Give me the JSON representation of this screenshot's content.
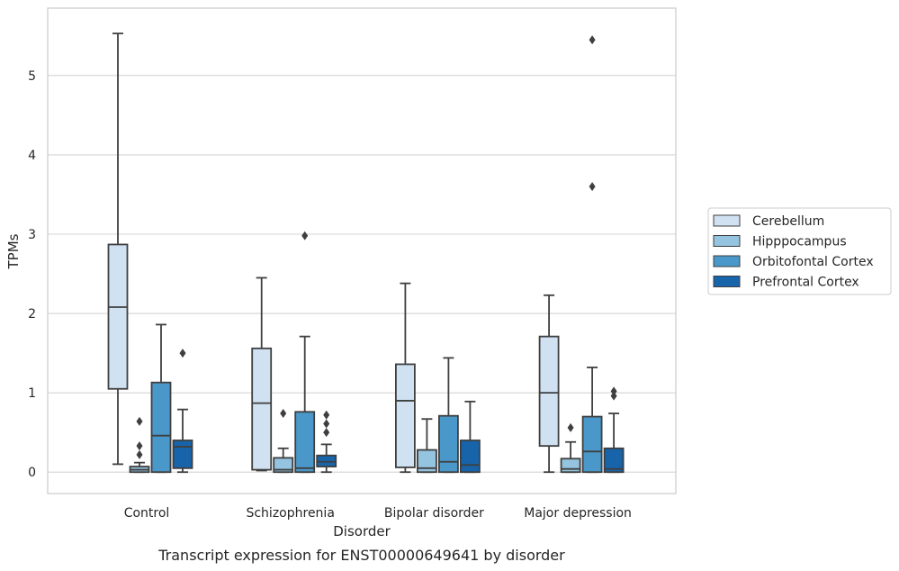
{
  "chart_data": {
    "type": "box",
    "caption": "Transcript expression for ENST00000649641 by disorder",
    "xlabel": "Disorder",
    "ylabel": "TPMs",
    "ylim": [
      -0.27,
      5.85
    ],
    "yticks": [
      0,
      1,
      2,
      3,
      4,
      5
    ],
    "grid": true,
    "legend_position": "right",
    "categories": [
      "Control",
      "Schizophrenia",
      "Bipolar disorder",
      "Major depression"
    ],
    "series": [
      {
        "name": "Cerebellum",
        "color": "#d0e1f2",
        "boxes": [
          {
            "whislo": 0.1,
            "q1": 1.05,
            "med": 2.08,
            "q3": 2.87,
            "whishi": 5.53,
            "fliers": []
          },
          {
            "whislo": 0.02,
            "q1": 0.03,
            "med": 0.87,
            "q3": 1.56,
            "whishi": 2.45,
            "fliers": []
          },
          {
            "whislo": 0.0,
            "q1": 0.06,
            "med": 0.9,
            "q3": 1.36,
            "whishi": 2.38,
            "fliers": []
          },
          {
            "whislo": 0.0,
            "q1": 0.33,
            "med": 1.0,
            "q3": 1.71,
            "whishi": 2.23,
            "fliers": []
          }
        ]
      },
      {
        "name": "Hipppocampus",
        "color": "#94c4df",
        "boxes": [
          {
            "whislo": 0.0,
            "q1": 0.0,
            "med": 0.03,
            "q3": 0.07,
            "whishi": 0.12,
            "fliers": [
              0.22,
              0.33,
              0.64
            ]
          },
          {
            "whislo": 0.0,
            "q1": 0.0,
            "med": 0.03,
            "q3": 0.18,
            "whishi": 0.3,
            "fliers": [
              0.74
            ]
          },
          {
            "whislo": 0.0,
            "q1": 0.0,
            "med": 0.05,
            "q3": 0.28,
            "whishi": 0.67,
            "fliers": []
          },
          {
            "whislo": 0.0,
            "q1": 0.0,
            "med": 0.04,
            "q3": 0.17,
            "whishi": 0.38,
            "fliers": [
              0.56
            ]
          }
        ]
      },
      {
        "name": "Orbitofontal Cortex",
        "color": "#4a98c9",
        "boxes": [
          {
            "whislo": 0.0,
            "q1": 0.0,
            "med": 0.46,
            "q3": 1.13,
            "whishi": 1.86,
            "fliers": []
          },
          {
            "whislo": 0.0,
            "q1": 0.0,
            "med": 0.05,
            "q3": 0.76,
            "whishi": 1.71,
            "fliers": [
              2.98
            ]
          },
          {
            "whislo": 0.0,
            "q1": 0.0,
            "med": 0.13,
            "q3": 0.71,
            "whishi": 1.44,
            "fliers": []
          },
          {
            "whislo": 0.0,
            "q1": 0.0,
            "med": 0.26,
            "q3": 0.7,
            "whishi": 1.32,
            "fliers": [
              3.6,
              5.45
            ]
          }
        ]
      },
      {
        "name": "Prefrontal Cortex",
        "color": "#1764ab",
        "boxes": [
          {
            "whislo": 0.0,
            "q1": 0.05,
            "med": 0.32,
            "q3": 0.4,
            "whishi": 0.79,
            "fliers": [
              1.5
            ]
          },
          {
            "whislo": 0.0,
            "q1": 0.07,
            "med": 0.13,
            "q3": 0.21,
            "whishi": 0.35,
            "fliers": [
              0.5,
              0.61,
              0.72
            ]
          },
          {
            "whislo": 0.0,
            "q1": 0.0,
            "med": 0.09,
            "q3": 0.4,
            "whishi": 0.89,
            "fliers": []
          },
          {
            "whislo": 0.0,
            "q1": 0.0,
            "med": 0.04,
            "q3": 0.3,
            "whishi": 0.74,
            "fliers": [
              0.96,
              1.02
            ]
          }
        ]
      }
    ]
  }
}
